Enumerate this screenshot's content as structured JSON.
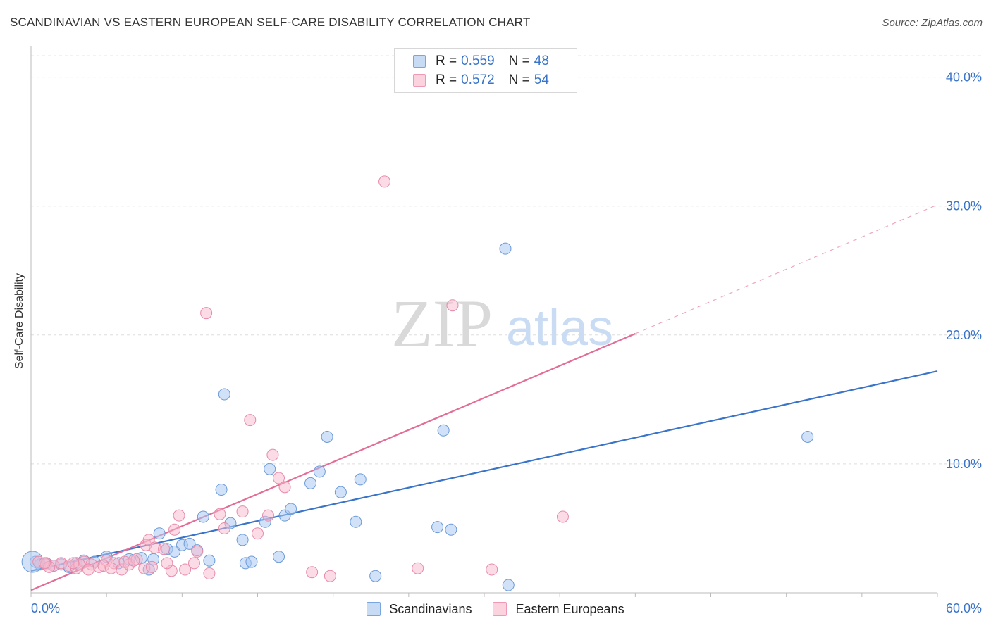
{
  "header": {
    "title": "SCANDINAVIAN VS EASTERN EUROPEAN SELF-CARE DISABILITY CORRELATION CHART",
    "source": "Source: ZipAtlas.com"
  },
  "watermark": {
    "zip": "ZIP",
    "atlas": "atlas"
  },
  "legend": {
    "r_label": "R =",
    "n_label": "N =",
    "rows": [
      {
        "r": "0.559",
        "n": "48",
        "color": "#a9c8f2"
      },
      {
        "r": "0.572",
        "n": "54",
        "color": "#f7b7cb"
      }
    ]
  },
  "bottom_legend": [
    {
      "label": "Scandinavians",
      "color": "#a9c8f2"
    },
    {
      "label": "Eastern Europeans",
      "color": "#f7b7cb"
    }
  ],
  "chart_data": {
    "type": "scatter",
    "xlabel": "",
    "ylabel": "Self-Care Disability",
    "xlim": [
      0,
      60
    ],
    "ylim": [
      0,
      42
    ],
    "x_ticks": [
      {
        "value": 0,
        "label": "0.0%"
      },
      {
        "value": 60,
        "label": "60.0%"
      }
    ],
    "y_ticks": [
      {
        "value": 10,
        "label": "10.0%"
      },
      {
        "value": 20,
        "label": "20.0%"
      },
      {
        "value": 30,
        "label": "30.0%"
      },
      {
        "value": 40,
        "label": "40.0%"
      }
    ],
    "colors": {
      "blue": "#3a74c9",
      "pink": "#e36d96"
    },
    "series": [
      {
        "name": "Scandinavians",
        "color": "#a9c8f2",
        "stroke": "#6b9ad8",
        "trendline": {
          "x": [
            0,
            60
          ],
          "y": [
            1.7,
            17.2
          ]
        },
        "points": [
          [
            0.3,
            2.4
          ],
          [
            0.6,
            2.2
          ],
          [
            1.0,
            2.3
          ],
          [
            1.5,
            2.1
          ],
          [
            2.0,
            2.2
          ],
          [
            2.5,
            2.0
          ],
          [
            3.0,
            2.3
          ],
          [
            3.5,
            2.5
          ],
          [
            4.2,
            2.4
          ],
          [
            5.0,
            2.8
          ],
          [
            5.8,
            2.3
          ],
          [
            6.5,
            2.6
          ],
          [
            7.3,
            2.7
          ],
          [
            7.8,
            1.8
          ],
          [
            8.1,
            2.6
          ],
          [
            8.5,
            4.6
          ],
          [
            9.0,
            3.4
          ],
          [
            9.5,
            3.2
          ],
          [
            10.0,
            3.7
          ],
          [
            10.5,
            3.8
          ],
          [
            11.0,
            3.3
          ],
          [
            11.4,
            5.9
          ],
          [
            11.8,
            2.5
          ],
          [
            12.6,
            8.0
          ],
          [
            12.8,
            15.4
          ],
          [
            13.2,
            5.4
          ],
          [
            14.0,
            4.1
          ],
          [
            14.2,
            2.3
          ],
          [
            14.6,
            2.4
          ],
          [
            15.5,
            5.5
          ],
          [
            15.8,
            9.6
          ],
          [
            16.4,
            2.8
          ],
          [
            16.8,
            6.0
          ],
          [
            17.2,
            6.5
          ],
          [
            18.5,
            8.5
          ],
          [
            19.1,
            9.4
          ],
          [
            19.6,
            12.1
          ],
          [
            20.5,
            7.8
          ],
          [
            21.5,
            5.5
          ],
          [
            21.8,
            8.8
          ],
          [
            22.8,
            1.3
          ],
          [
            26.9,
            5.1
          ],
          [
            27.3,
            12.6
          ],
          [
            27.8,
            4.9
          ],
          [
            31.4,
            26.7
          ],
          [
            31.6,
            0.6
          ],
          [
            51.4,
            12.1
          ],
          [
            0.1,
            2.4
          ]
        ],
        "big_point_index": 47
      },
      {
        "name": "Eastern Europeans",
        "color": "#f7b7cb",
        "stroke": "#e88aa9",
        "trendline": {
          "x": [
            0,
            40
          ],
          "y": [
            0.2,
            20.1
          ]
        },
        "trendline_dashed": {
          "x": [
            40,
            60
          ],
          "y": [
            20.1,
            30.1
          ]
        },
        "points": [
          [
            0.5,
            2.4
          ],
          [
            1.0,
            2.2
          ],
          [
            1.5,
            2.1
          ],
          [
            2.0,
            2.3
          ],
          [
            2.5,
            2.1
          ],
          [
            3.0,
            1.9
          ],
          [
            3.5,
            2.4
          ],
          [
            4.0,
            2.2
          ],
          [
            4.5,
            2.0
          ],
          [
            5.0,
            2.5
          ],
          [
            5.5,
            2.3
          ],
          [
            6.0,
            1.8
          ],
          [
            6.5,
            2.2
          ],
          [
            7.0,
            2.6
          ],
          [
            7.5,
            1.9
          ],
          [
            7.6,
            3.7
          ],
          [
            7.8,
            4.1
          ],
          [
            8.2,
            3.5
          ],
          [
            8.8,
            3.4
          ],
          [
            9.3,
            1.7
          ],
          [
            9.5,
            4.9
          ],
          [
            9.8,
            6.0
          ],
          [
            10.2,
            1.8
          ],
          [
            11.0,
            3.2
          ],
          [
            10.8,
            2.3
          ],
          [
            11.6,
            21.7
          ],
          [
            11.8,
            1.5
          ],
          [
            12.5,
            6.1
          ],
          [
            12.8,
            5.0
          ],
          [
            14.0,
            6.3
          ],
          [
            14.5,
            13.4
          ],
          [
            15.0,
            4.6
          ],
          [
            15.7,
            6.0
          ],
          [
            16.0,
            10.7
          ],
          [
            16.4,
            8.9
          ],
          [
            16.8,
            8.2
          ],
          [
            18.6,
            1.6
          ],
          [
            19.8,
            1.3
          ],
          [
            23.4,
            31.9
          ],
          [
            25.6,
            1.9
          ],
          [
            27.9,
            22.3
          ],
          [
            30.5,
            1.8
          ],
          [
            35.2,
            5.9
          ],
          [
            3.2,
            2.2
          ],
          [
            4.8,
            2.1
          ],
          [
            6.2,
            2.4
          ],
          [
            8.0,
            2.0
          ],
          [
            2.8,
            2.3
          ],
          [
            1.2,
            2.0
          ],
          [
            0.9,
            2.3
          ],
          [
            5.3,
            1.9
          ],
          [
            9.0,
            2.3
          ],
          [
            3.8,
            1.8
          ],
          [
            6.8,
            2.5
          ]
        ]
      }
    ]
  }
}
